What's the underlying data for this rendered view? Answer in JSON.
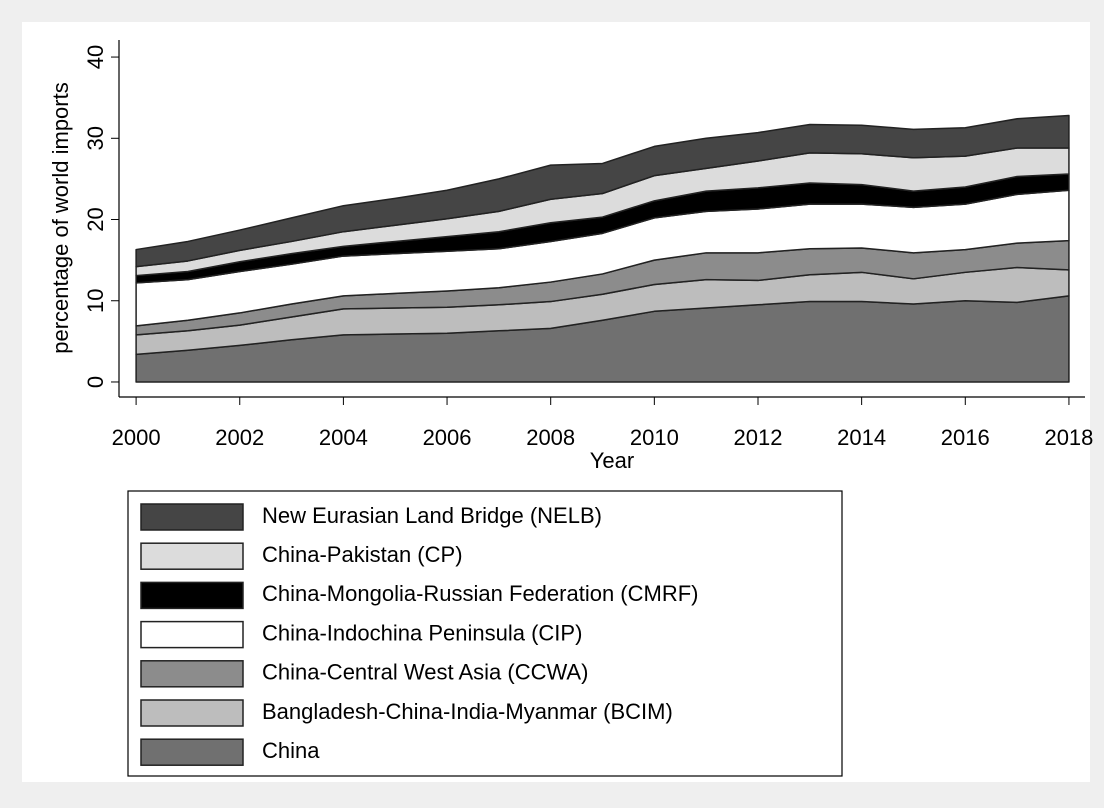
{
  "chart_data": {
    "type": "stacked_area",
    "x_label": "Year",
    "y_label": "percentage of world imports",
    "x": [
      2000,
      2001,
      2002,
      2003,
      2004,
      2005,
      2006,
      2007,
      2008,
      2009,
      2010,
      2011,
      2012,
      2013,
      2014,
      2015,
      2016,
      2017,
      2018
    ],
    "xlim": [
      1999.67,
      2018.31
    ],
    "xticks": [
      2000,
      2002,
      2004,
      2006,
      2008,
      2010,
      2012,
      2014,
      2016,
      2018
    ],
    "ylim": [
      -1.85,
      42.1
    ],
    "yticks": [
      0,
      10,
      20,
      30,
      40
    ],
    "series": [
      {
        "name": "China",
        "color": "#707070",
        "values": [
          3.4,
          3.9,
          4.5,
          5.2,
          5.8,
          5.9,
          6.0,
          6.3,
          6.6,
          7.6,
          8.7,
          9.1,
          9.5,
          9.9,
          9.9,
          9.6,
          10.0,
          9.8,
          10.6
        ]
      },
      {
        "name": "Bangladesh-China-India-Myanmar (BCIM)",
        "color": "#bdbdbd",
        "values": [
          2.4,
          2.4,
          2.5,
          2.8,
          3.2,
          3.2,
          3.2,
          3.2,
          3.3,
          3.2,
          3.3,
          3.5,
          3.0,
          3.3,
          3.6,
          3.1,
          3.5,
          4.3,
          3.2
        ]
      },
      {
        "name": "China-Central West Asia (CCWA)",
        "color": "#8c8c8c",
        "values": [
          1.1,
          1.3,
          1.5,
          1.6,
          1.6,
          1.8,
          2.0,
          2.1,
          2.4,
          2.5,
          3.0,
          3.3,
          3.4,
          3.2,
          3.0,
          3.2,
          2.8,
          3.0,
          3.6
        ]
      },
      {
        "name": "China-Indochina Peninsula (CIP)",
        "color": "#ffffff",
        "values": [
          5.3,
          5.0,
          5.1,
          4.9,
          4.9,
          4.9,
          4.9,
          4.8,
          5.0,
          5.0,
          5.2,
          5.1,
          5.4,
          5.5,
          5.4,
          5.6,
          5.6,
          6.0,
          6.2
        ]
      },
      {
        "name": "China-Mongolia-Russian Federation (CMRF)",
        "color": "#000000",
        "values": [
          0.9,
          1.0,
          1.2,
          1.3,
          1.2,
          1.5,
          1.8,
          2.1,
          2.3,
          2.0,
          2.1,
          2.5,
          2.6,
          2.6,
          2.4,
          2.0,
          2.1,
          2.2,
          2.0
        ]
      },
      {
        "name": "China-Pakistan (CP)",
        "color": "#dcdcdc",
        "values": [
          1.1,
          1.3,
          1.4,
          1.5,
          1.8,
          2.0,
          2.2,
          2.5,
          2.9,
          2.9,
          3.1,
          2.8,
          3.3,
          3.7,
          3.8,
          4.1,
          3.8,
          3.5,
          3.2
        ]
      },
      {
        "name": "New Eurasian Land Bridge (NELB)",
        "color": "#454545",
        "values": [
          2.1,
          2.4,
          2.5,
          2.9,
          3.2,
          3.3,
          3.5,
          4.0,
          4.2,
          3.7,
          3.6,
          3.7,
          3.5,
          3.5,
          3.5,
          3.5,
          3.5,
          3.6,
          4.0
        ]
      }
    ]
  }
}
